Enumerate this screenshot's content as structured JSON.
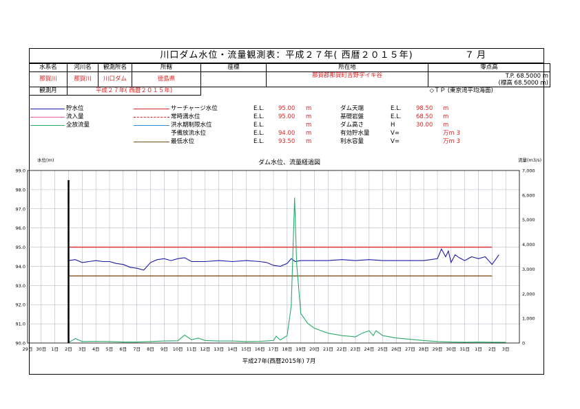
{
  "header": {
    "title": "川口ダム水位・流量観測表：平成２７年( 西暦２０１５年)",
    "month": "７ 月"
  },
  "info": {
    "col_suikei": "水系名",
    "col_kasen": "河川名",
    "col_station": "観測所名",
    "col_ken": "所轄",
    "col_zahyou": "座標",
    "col_loc": "所在地",
    "col_zero": "零点高",
    "suikei": "那賀川",
    "kasen": "那賀川",
    "station": "川口ダム",
    "ken": "徳島県",
    "location": "那賀郡那賀町吉野字イキ谷",
    "zero_tp": "T.P.  68.5000  m",
    "zero_std": "(標高  68.5000  m)",
    "period_label": "観測月",
    "period": "平成２７年( 西暦２０１５年)",
    "datum": "◇ＴＰ (東京湾平均海面)"
  },
  "legend": {
    "items": [
      {
        "label": "貯水位",
        "color": "#1a1aa8",
        "style": "solid"
      },
      {
        "label": "流入量",
        "color": "#e060a0",
        "style": "solid"
      },
      {
        "label": "全放流量",
        "color": "#2aaa6a",
        "style": "solid"
      }
    ],
    "levels": [
      {
        "label": "サーチャージ水位",
        "color": "#d22",
        "style": "solid",
        "el": "E.L.",
        "value": "95.00",
        "unit": "m"
      },
      {
        "label": "常時満水位",
        "color": "#d22",
        "style": "dashed",
        "el": "E.L.",
        "value": "95.00",
        "unit": "m"
      },
      {
        "label": "洪水期制限水位",
        "color": "#2a8ad8",
        "style": "solid",
        "el": "E.L.",
        "value": "",
        "unit": "m"
      },
      {
        "label": "予備放流水位",
        "color": "#ffffff",
        "style": "solid",
        "el": "E.L.",
        "value": "94.00",
        "unit": "m"
      },
      {
        "label": "最低水位",
        "color": "#7a4a10",
        "style": "solid",
        "el": "E.L.",
        "value": "93.50",
        "unit": "m"
      }
    ],
    "dam": [
      {
        "label": "ダム天端",
        "key": "E.L.",
        "value": "98.50",
        "unit": "m"
      },
      {
        "label": "基礎岩盤",
        "key": "E.L.",
        "value": "68.50",
        "unit": "m"
      },
      {
        "label": "ダム高さ",
        "key": "H",
        "value": "30.00",
        "unit": "m"
      },
      {
        "label": "有効貯水量",
        "key": "V=",
        "value": "",
        "unit": "万m 3"
      },
      {
        "label": "利水容量",
        "key": "V=",
        "value": "",
        "unit": "万m 3"
      }
    ]
  },
  "chart_data": {
    "type": "line",
    "title": "ダム水位、流量経過図",
    "ylabel": "水位(m)",
    "y2label": "流量(m3/s)",
    "xlabel": "平成27年(西暦2015年) 7月",
    "ylim": [
      90.0,
      99.0
    ],
    "y2lim": [
      0,
      7000
    ],
    "yticks": [
      "90.0",
      "91.0",
      "92.0",
      "93.0",
      "94.0",
      "95.0",
      "96.0",
      "97.0",
      "98.0",
      "99.0"
    ],
    "y2ticks": [
      "0",
      "1,000",
      "2,000",
      "3,000",
      "4,000",
      "5,000",
      "6,000",
      "7,000"
    ],
    "xticks": [
      "29日",
      "30日",
      "1日",
      "2日",
      "3日",
      "4日",
      "5日",
      "6日",
      "7日",
      "8日",
      "9日",
      "10日",
      "11日",
      "12日",
      "13日",
      "14日",
      "15日",
      "16日",
      "17日",
      "18日",
      "19日",
      "20日",
      "21日",
      "22日",
      "23日",
      "24日",
      "25日",
      "26日",
      "27日",
      "28日",
      "29日",
      "30日",
      "31日",
      "1日",
      "2日",
      "3日"
    ],
    "ref_lines": [
      {
        "name": "サーチャージ水位",
        "value": 95.0,
        "color": "#d22"
      },
      {
        "name": "最低水位",
        "value": 93.5,
        "color": "#7a4a10"
      }
    ],
    "series": [
      {
        "name": "貯水位",
        "axis": "left",
        "color": "#1a1aa8",
        "points": [
          [
            1.0,
            94.3
          ],
          [
            1.5,
            94.35
          ],
          [
            2.0,
            94.2
          ],
          [
            2.5,
            94.25
          ],
          [
            3.0,
            94.3
          ],
          [
            3.5,
            94.25
          ],
          [
            4.0,
            94.25
          ],
          [
            4.5,
            94.15
          ],
          [
            5.0,
            94.1
          ],
          [
            5.5,
            93.95
          ],
          [
            6.0,
            93.9
          ],
          [
            6.5,
            93.8
          ],
          [
            7.0,
            94.2
          ],
          [
            7.5,
            94.35
          ],
          [
            8.0,
            94.4
          ],
          [
            8.5,
            94.3
          ],
          [
            9.0,
            94.4
          ],
          [
            9.5,
            94.45
          ],
          [
            10.0,
            94.25
          ],
          [
            11.0,
            94.25
          ],
          [
            12.0,
            94.3
          ],
          [
            13.0,
            94.25
          ],
          [
            14.0,
            94.3
          ],
          [
            15.0,
            94.25
          ],
          [
            15.5,
            94.2
          ],
          [
            16.0,
            94.05
          ],
          [
            16.5,
            94.0
          ],
          [
            17.0,
            94.15
          ],
          [
            17.3,
            94.4
          ],
          [
            17.6,
            94.25
          ],
          [
            18.0,
            94.3
          ],
          [
            19.0,
            94.3
          ],
          [
            20.0,
            94.3
          ],
          [
            21.0,
            94.35
          ],
          [
            22.0,
            94.3
          ],
          [
            23.0,
            94.35
          ],
          [
            24.0,
            94.3
          ],
          [
            25.0,
            94.3
          ],
          [
            26.0,
            94.3
          ],
          [
            27.0,
            94.3
          ],
          [
            27.5,
            94.35
          ],
          [
            28.0,
            94.4
          ],
          [
            28.3,
            94.9
          ],
          [
            28.6,
            94.5
          ],
          [
            28.8,
            94.8
          ],
          [
            29.0,
            94.2
          ],
          [
            29.3,
            94.6
          ],
          [
            29.6,
            94.45
          ],
          [
            30.0,
            94.3
          ],
          [
            30.5,
            94.5
          ],
          [
            31.0,
            94.4
          ],
          [
            31.5,
            94.5
          ],
          [
            32.0,
            94.1
          ],
          [
            32.5,
            94.6
          ]
        ]
      },
      {
        "name": "全放流量",
        "axis": "right",
        "color": "#2aaa6a",
        "points": [
          [
            1.0,
            20
          ],
          [
            1.5,
            180
          ],
          [
            2.0,
            60
          ],
          [
            3.0,
            70
          ],
          [
            4.0,
            60
          ],
          [
            5.0,
            40
          ],
          [
            6.0,
            40
          ],
          [
            7.0,
            60
          ],
          [
            8.0,
            80
          ],
          [
            9.0,
            90
          ],
          [
            9.5,
            320
          ],
          [
            10.0,
            130
          ],
          [
            10.5,
            200
          ],
          [
            11.0,
            100
          ],
          [
            12.0,
            80
          ],
          [
            13.0,
            80
          ],
          [
            14.0,
            60
          ],
          [
            15.0,
            70
          ],
          [
            16.0,
            100
          ],
          [
            16.2,
            280
          ],
          [
            16.5,
            120
          ],
          [
            17.0,
            300
          ],
          [
            17.3,
            1500
          ],
          [
            17.55,
            5900
          ],
          [
            17.7,
            3200
          ],
          [
            18.0,
            1200
          ],
          [
            18.5,
            800
          ],
          [
            19.0,
            600
          ],
          [
            19.5,
            500
          ],
          [
            20.0,
            400
          ],
          [
            21.0,
            300
          ],
          [
            22.0,
            250
          ],
          [
            22.5,
            400
          ],
          [
            23.0,
            500
          ],
          [
            23.3,
            300
          ],
          [
            23.5,
            500
          ],
          [
            24.0,
            300
          ],
          [
            25.0,
            200
          ],
          [
            26.0,
            150
          ],
          [
            27.0,
            100
          ],
          [
            28.0,
            60
          ],
          [
            29.0,
            40
          ],
          [
            30.0,
            30
          ],
          [
            31.0,
            40
          ],
          [
            32.0,
            30
          ],
          [
            33.0,
            30
          ]
        ]
      }
    ]
  }
}
